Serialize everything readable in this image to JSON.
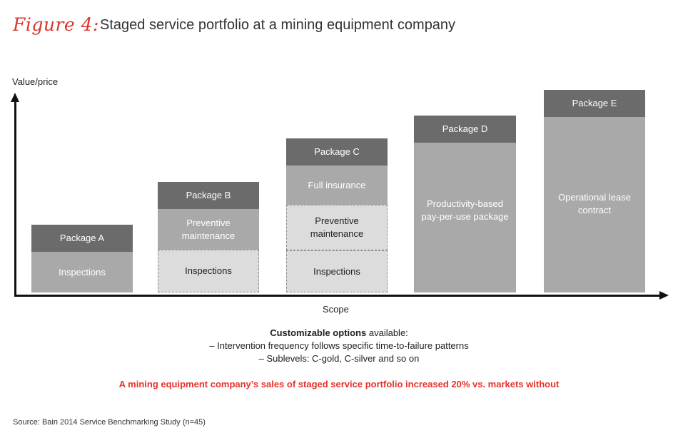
{
  "header": {
    "figure_label": "Figure 4:",
    "title": "Staged service portfolio at a mining equipment company"
  },
  "axes": {
    "y_label": "Value/price",
    "x_label": "Scope"
  },
  "packages": {
    "a": {
      "name": "Package A",
      "inspections": "Inspections"
    },
    "b": {
      "name": "Package B",
      "preventive": "Preventive maintenance",
      "inspections": "Inspections"
    },
    "c": {
      "name": "Package C",
      "full_insurance": "Full insurance",
      "preventive": "Preventive maintenance",
      "inspections": "Inspections"
    },
    "d": {
      "name": "Package D",
      "body": "Productivity-based pay-per-use package"
    },
    "e": {
      "name": "Package E",
      "body": "Operational lease contract"
    }
  },
  "options": {
    "title_bold": "Customizable options",
    "title_rest": " available:",
    "line1": "– Intervention frequency follows specific time-to-failure patterns",
    "line2": "– Sublevels: C-gold, C-silver and so on"
  },
  "highlight": "A mining equipment company’s sales of staged service portfolio increased 20% vs. markets without",
  "source": "Source: Bain 2014 Service Benchmarking Study (n=45)",
  "colors": {
    "figure_label": "#d9342b",
    "highlight": "#e8312a",
    "header_box": "#6b6b6b",
    "solid_box": "#a9a9a9",
    "dashed_box": "#dcdcdc"
  }
}
